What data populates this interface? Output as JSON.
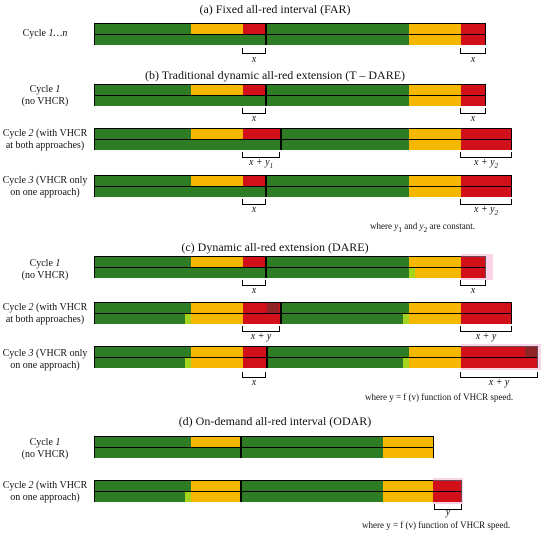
{
  "sections": {
    "far": {
      "title": "(a) Fixed all-red interval (FAR)"
    },
    "tdare": {
      "title": "(b) Traditional dynamic all-red extension (T – DARE)"
    },
    "dare": {
      "title": "(c) Dynamic all-red extension (DARE)"
    },
    "odar": {
      "title": "(d) On-demand all-red interval (ODAR)"
    }
  },
  "labels": {
    "far_cycle_prefix": "Cycle ",
    "far_cycle_range": "1…n",
    "cycle1_prefix": "Cycle ",
    "cycle1_num": "1",
    "no_vhcr": "(no VHCR)",
    "cycle2_line1_prefix": "Cycle ",
    "cycle2_num": "2",
    "cycle2_line1_suffix": " (with VHCR",
    "cycle2_line2": "at both approaches)",
    "cycle3_line1_prefix": "Cycle ",
    "cycle3_num": "3",
    "cycle3_line1_suffix": " (VHCR only",
    "cycle3_line2": "on one approach)",
    "odar_cycle2_line1_suffix": " (with VHCR",
    "odar_cycle2_line2": "on one approach)"
  },
  "braces": {
    "x": "x",
    "x_plus": "x + y",
    "y1": "1",
    "y2": "2",
    "y": "y"
  },
  "notes": {
    "tdare_where": "where ",
    "tdare_y1": "y",
    "tdare_sub1": "1",
    "tdare_and": " and ",
    "tdare_y2": "y",
    "tdare_sub2": "2",
    "tdare_rest": " are constant.",
    "dare_where": "where y = f (v) function of VHCR speed.",
    "odar_where": "where y = f (v) function of VHCR speed."
  },
  "colors": {
    "green": "#2e7d24",
    "amber": "#f6b700",
    "red": "#d2101a",
    "lime": "#a4d41e",
    "highlight": "#f3a0c9"
  }
}
